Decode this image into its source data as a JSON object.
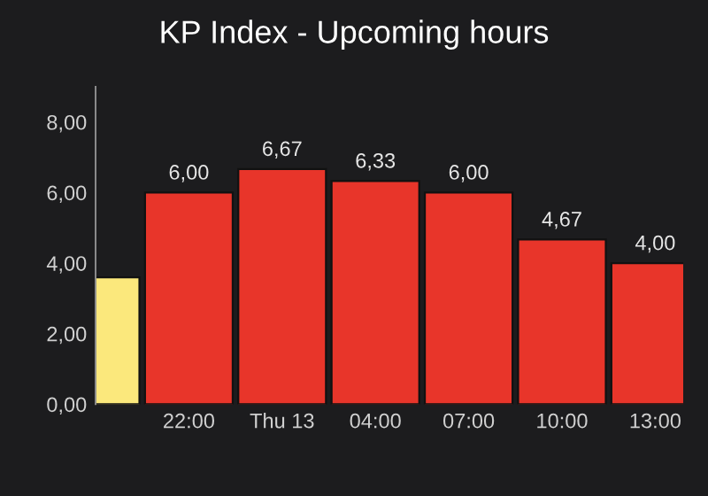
{
  "chart_data": {
    "type": "bar",
    "title": "KP Index - Upcoming hours",
    "categories": [
      null,
      "22:00",
      "Thu 13",
      "04:00",
      "07:00",
      "10:00",
      "13:00"
    ],
    "values": [
      3.6,
      6.0,
      6.67,
      6.33,
      6.0,
      4.67,
      4.0
    ],
    "colors": [
      "#fbe87c",
      "#e8352a",
      "#e8352a",
      "#e8352a",
      "#e8352a",
      "#e8352a",
      "#e8352a"
    ],
    "value_labels": [
      null,
      "6,00",
      "6,67",
      "6,33",
      "6,00",
      "4,67",
      "4,00"
    ],
    "ylim": [
      0,
      9
    ],
    "yticks": [
      {
        "value": 0,
        "label": "0,00"
      },
      {
        "value": 2,
        "label": "2,00"
      },
      {
        "value": 4,
        "label": "4,00"
      },
      {
        "value": 6,
        "label": "6,00"
      },
      {
        "value": 8,
        "label": "8,00"
      }
    ],
    "grid": false
  }
}
